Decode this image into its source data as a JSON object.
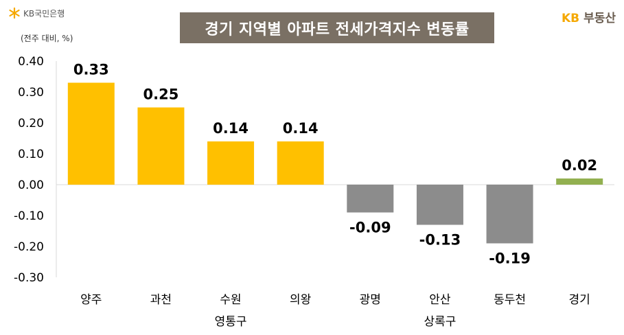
{
  "header": {
    "bank_logo_text": "KB국민은행",
    "unit_label": "(전주 대비, %)",
    "brand_kb": "KB",
    "brand_name": "부동산"
  },
  "colors": {
    "positive": "#ffc000",
    "negative": "#8c8c8c",
    "total": "#92b050",
    "title_bg": "#7a7064",
    "brand_accent": "#f5a800"
  },
  "chart_data": {
    "type": "bar",
    "title": "경기 지역별 아파트 전세가격지수 변동률",
    "categories": [
      "양주",
      "과천",
      "수원",
      "의왕",
      "광명",
      "안산",
      "동두천",
      "경기"
    ],
    "values": [
      0.33,
      0.25,
      0.14,
      0.14,
      -0.09,
      -0.13,
      -0.19,
      0.02
    ],
    "group_labels": [
      {
        "label": "영통구",
        "category": "수원"
      },
      {
        "label": "상록구",
        "category": "안산"
      }
    ],
    "yticks": [
      "0.40",
      "0.30",
      "0.20",
      "0.10",
      "0.00",
      "-0.10",
      "-0.20",
      "-0.30"
    ],
    "ylim": [
      -0.3,
      0.4
    ],
    "xlabel": "",
    "ylabel": "",
    "grid": false,
    "legend": "none"
  }
}
